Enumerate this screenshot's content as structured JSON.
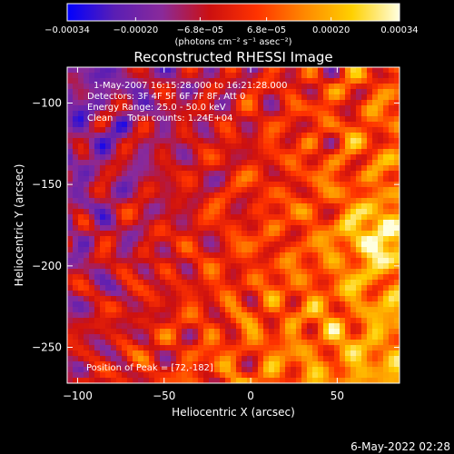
{
  "chart_data": {
    "type": "heatmap",
    "title": "Reconstructed RHESSI Image",
    "xlabel": "Heliocentric X (arcsec)",
    "ylabel": "Heliocentric Y (arcsec)",
    "xlim": [
      -106,
      86
    ],
    "ylim": [
      -272,
      -78
    ],
    "x_ticks": [
      -100,
      -50,
      0,
      50
    ],
    "y_ticks": [
      -100,
      -150,
      -200,
      -250
    ],
    "x_tick_labels": [
      "−100",
      "−50",
      "0",
      "50"
    ],
    "y_tick_labels": [
      "−100",
      "−150",
      "−200",
      "−250"
    ],
    "colorbar": {
      "min": -0.00034,
      "max": 0.00034,
      "ticks": [
        -0.00034,
        -0.0002,
        -6.8e-05,
        6.8e-05,
        0.0002,
        0.00034
      ],
      "tick_labels": [
        "−0.00034",
        "−0.00020",
        "−6.8e−05",
        "6.8e−05",
        "0.00020",
        "0.00034"
      ],
      "unit_label": "(photons cm⁻² s⁻¹ asec⁻²)",
      "colors": [
        "#0000ff",
        "#5a1eb4",
        "#8a2a9a",
        "#cc1010",
        "#ff3300",
        "#ff8800",
        "#ffd000",
        "#ffffe0"
      ]
    },
    "annotations": [
      "1-May-2007 16:15:28.000  to 16:21:28.000",
      "Detectors: 3F 4F 5F 6F 7F 8F, Att 0",
      "Energy Range: 25.0 - 50.0 keV",
      "Clean     Total counts: 1.24E+04"
    ],
    "peak_label": "Position of Peak = [72,-182]",
    "peak": {
      "x": 72,
      "y": -182
    },
    "grid": false
  },
  "footer": {
    "timestamp": "6-May-2022 02:28"
  }
}
